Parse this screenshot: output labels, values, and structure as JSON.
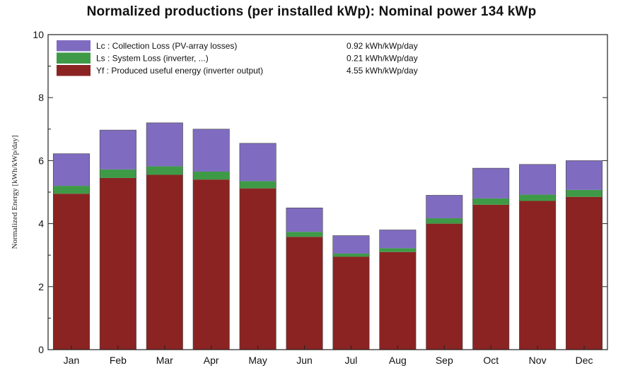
{
  "chart_data": {
    "type": "bar",
    "stacked": true,
    "title": "Normalized productions (per installed kWp):  Nominal power 134 kWp",
    "ylabel": "Normalized Energy  [kWh/kWp/day]",
    "xlabel": "",
    "ylim": [
      0,
      10
    ],
    "yticks": [
      0,
      2,
      4,
      6,
      8,
      10
    ],
    "grid": false,
    "legend_position": "top-left",
    "categories": [
      "Jan",
      "Feb",
      "Mar",
      "Apr",
      "May",
      "Jun",
      "Jul",
      "Aug",
      "Sep",
      "Oct",
      "Nov",
      "Dec"
    ],
    "series": [
      {
        "key": "yf",
        "name": "Yf : Produced useful energy  (inverter output)",
        "legend_value": "4.55 kWh/kWp/day",
        "color": "#8b2323",
        "values": [
          4.95,
          5.45,
          5.55,
          5.4,
          5.12,
          3.58,
          2.95,
          3.1,
          4.0,
          4.6,
          4.72,
          4.85
        ]
      },
      {
        "key": "ls",
        "name": "Ls : System Loss  (inverter, ...)",
        "legend_value": "0.21 kWh/kWp/day",
        "color": "#3f9a47",
        "values": [
          0.25,
          0.27,
          0.27,
          0.25,
          0.23,
          0.16,
          0.1,
          0.12,
          0.17,
          0.2,
          0.2,
          0.22
        ]
      },
      {
        "key": "lc",
        "name": "Lc : Collection Loss (PV-array losses)",
        "legend_value": "0.92 kWh/kWp/day",
        "color": "#7f6cc0",
        "values": [
          1.02,
          1.25,
          1.38,
          1.35,
          1.2,
          0.76,
          0.57,
          0.58,
          0.73,
          0.96,
          0.96,
          0.93
        ]
      }
    ]
  }
}
